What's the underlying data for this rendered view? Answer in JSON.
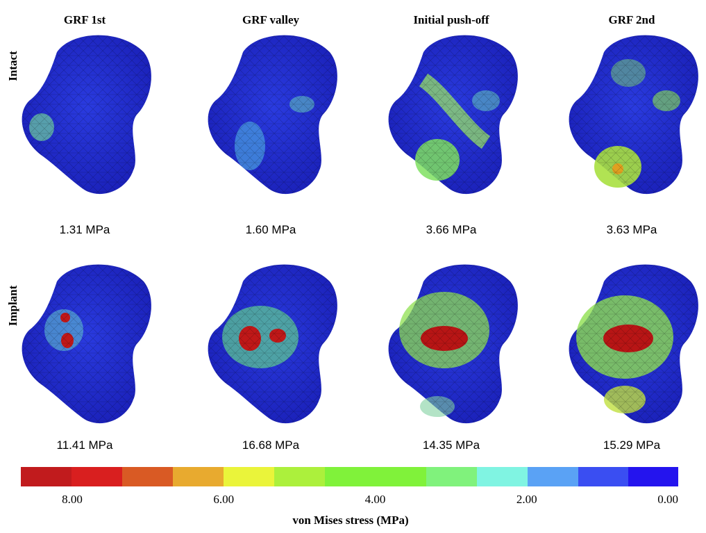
{
  "columns": [
    "GRF 1st",
    "GRF valley",
    "Initial push-off",
    "GRF 2nd"
  ],
  "rows": [
    {
      "label": "Intact",
      "peaks": [
        "1.31 MPa",
        "1.60 MPa",
        "3.66 MPa",
        "3.63 MPa"
      ]
    },
    {
      "label": "Implant",
      "peaks": [
        "11.41 MPa",
        "16.68 MPa",
        "14.35 MPa",
        "15.29 MPa"
      ]
    }
  ],
  "colorbar": {
    "ticks": [
      "8.00",
      "6.00",
      "4.00",
      "2.00",
      "0.00"
    ],
    "label": "von Mises stress (MPa)"
  }
}
